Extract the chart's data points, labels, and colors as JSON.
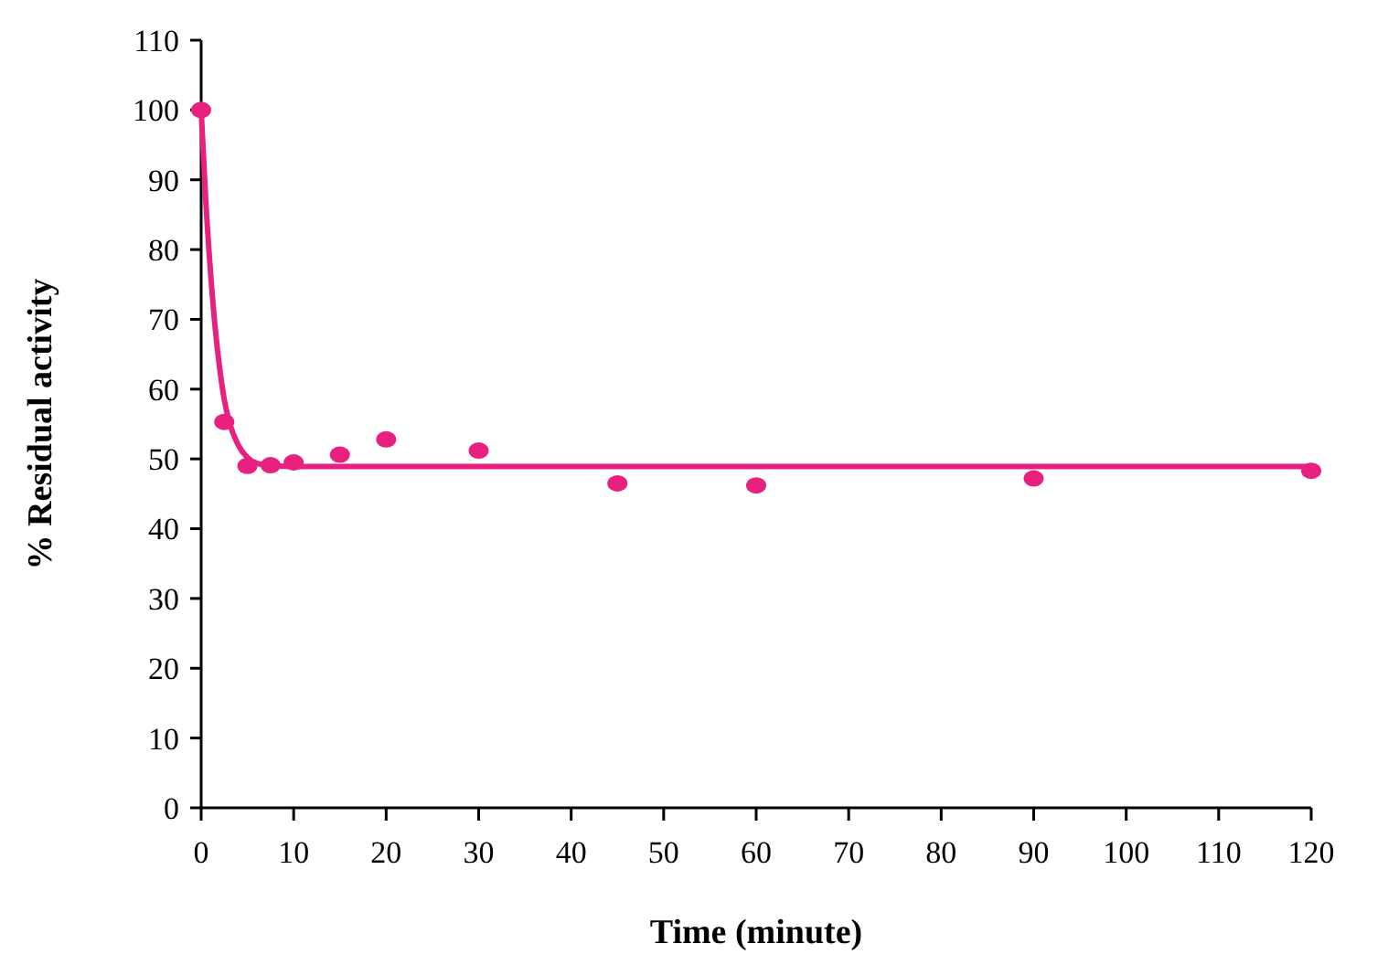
{
  "chart_data": {
    "type": "scatter",
    "xlabel": "Time (minute)",
    "ylabel": "% Residual activity",
    "xlim": [
      0,
      120
    ],
    "xticks": [
      0,
      10,
      20,
      30,
      40,
      50,
      60,
      70,
      80,
      90,
      100,
      110,
      120
    ],
    "ylim": [
      0,
      110
    ],
    "yticks": [
      0,
      10,
      20,
      30,
      40,
      50,
      60,
      70,
      80,
      90,
      100,
      110
    ],
    "grid": false,
    "series": [
      {
        "color": "#e8207f",
        "marker": "circle",
        "x": [
          0,
          2.5,
          5,
          7.5,
          10,
          15,
          20,
          30,
          45,
          60,
          90,
          120
        ],
        "values": [
          100,
          55.3,
          49,
          49.1,
          49.5,
          50.6,
          52.8,
          51.2,
          46.5,
          46.2,
          47.2,
          48.3
        ]
      },
      {
        "type": "line",
        "color": "#e8207f",
        "line_style": "solid",
        "x": [
          0,
          0.5,
          1,
          1.5,
          2,
          2.5,
          3,
          4,
          5,
          6,
          8,
          10,
          120
        ],
        "values": [
          100,
          87,
          77,
          69,
          63,
          58.5,
          55.5,
          52,
          50.2,
          49.4,
          49,
          48.9,
          48.9
        ]
      }
    ]
  }
}
